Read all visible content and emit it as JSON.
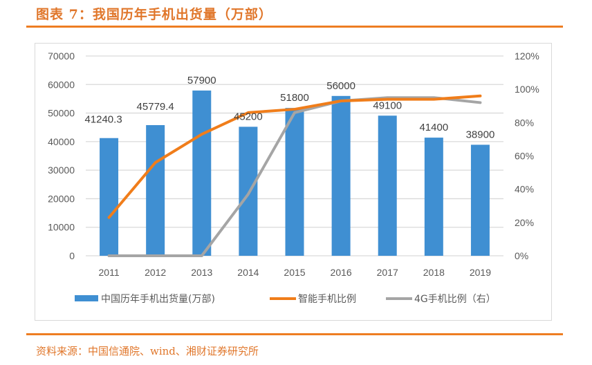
{
  "header": {
    "title": "图表 7：我国历年手机出货量（万部）"
  },
  "footer": {
    "source": "资料来源：中国信通院、wind、湘财证券研究所"
  },
  "colors": {
    "accent": "#ee7d22",
    "bar": "#3f8fd2",
    "smartphone": "#f07d1a",
    "g4": "#a5a5a5",
    "grid": "#d9d9d9"
  },
  "chart_data": {
    "type": "bar",
    "title": "",
    "xlabel": "",
    "ylabel": "",
    "categories": [
      "2011",
      "2012",
      "2013",
      "2014",
      "2015",
      "2016",
      "2017",
      "2018",
      "2019"
    ],
    "ylim": [
      0,
      70000
    ],
    "yticks": [
      "0",
      "10000",
      "20000",
      "30000",
      "40000",
      "50000",
      "60000",
      "70000"
    ],
    "y2lim": [
      0,
      120
    ],
    "y2ticks": [
      "0%",
      "20%",
      "40%",
      "60%",
      "80%",
      "100%",
      "120%"
    ],
    "grid": true,
    "legend_position": "bottom",
    "series": [
      {
        "name": "中国历年手机出货量(万部)",
        "type": "bar",
        "axis": "left",
        "values": [
          41240.3,
          45779.4,
          57900,
          45200,
          51800,
          56000,
          49100,
          41400,
          38900
        ],
        "labels": [
          "41240.3",
          "45779.4",
          "57900",
          "45200",
          "51800",
          "56000",
          "49100",
          "41400",
          "38900"
        ]
      },
      {
        "name": "智能手机比例",
        "type": "line",
        "axis": "right",
        "values": [
          23,
          56,
          73,
          86,
          88,
          93,
          94,
          94,
          96
        ]
      },
      {
        "name": "4G手机比例（右）",
        "type": "line",
        "axis": "right",
        "values": [
          0,
          0,
          0,
          37,
          86,
          93,
          95,
          95,
          92
        ]
      }
    ]
  }
}
